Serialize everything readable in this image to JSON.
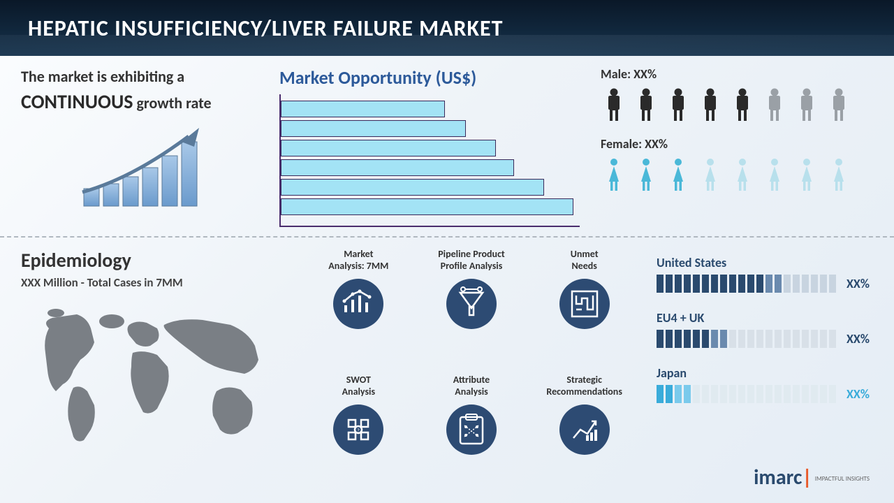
{
  "header": {
    "title": "HEPATIC INSUFFICIENCY/LIVER FAILURE MARKET"
  },
  "growth": {
    "line1": "The market is exhibiting a",
    "continuous": "CONTINUOUS",
    "line2_suffix": " growth rate"
  },
  "opportunity": {
    "title": "Market Opportunity (US$)",
    "bars": [
      55,
      62,
      72,
      78,
      88,
      98
    ],
    "bar_color": "#a3e3f5",
    "border_color": "#3a2a5a",
    "axis_color": "#4a2d6e"
  },
  "gender": {
    "male": {
      "label": "Male: XX%",
      "filled": 5,
      "total": 8,
      "filled_color": "#2a2a2a",
      "empty_color": "#9aa0a6"
    },
    "female": {
      "label": "Female: XX%",
      "filled": 3,
      "total": 8,
      "filled_color": "#4ab8d8",
      "empty_color": "#b8e0ec"
    }
  },
  "epidemiology": {
    "title": "Epidemiology",
    "subtitle": "XXX Million - Total Cases in 7MM",
    "map_color": "#7a7f85"
  },
  "analysis": {
    "circle_bg": "#2d4b73",
    "items": [
      {
        "label": "Market\nAnalysis: 7MM"
      },
      {
        "label": "Pipeline Product\nProfile Analysis"
      },
      {
        "label": "Unmet\nNeeds"
      },
      {
        "label": "SWOT\nAnalysis"
      },
      {
        "label": "Attribute\nAnalysis"
      },
      {
        "label": "Strategic\nRecommendations"
      }
    ]
  },
  "countries": [
    {
      "name": "United States",
      "pct": "XX%",
      "filled": 13,
      "total": 20,
      "color_filled": "#2a4a6e",
      "color_fade": "#6a8aae",
      "color_empty": "#c8d4e0",
      "pct_color": "#2a4a6e"
    },
    {
      "name": "EU4 + UK",
      "pct": "XX%",
      "filled": 7,
      "total": 20,
      "color_filled": "#2a4a6e",
      "color_fade": "#6a8aae",
      "color_empty": "#d8e0e8",
      "pct_color": "#2a4a6e"
    },
    {
      "name": "Japan",
      "pct": "XX%",
      "filled": 3,
      "total": 20,
      "color_filled": "#3aacda",
      "color_fade": "#7acaec",
      "color_empty": "#e0eaf0",
      "pct_color": "#3aacda"
    }
  ],
  "logo": {
    "brand": "imarc",
    "tagline": "IMPACTFUL\nINSIGHTS"
  }
}
